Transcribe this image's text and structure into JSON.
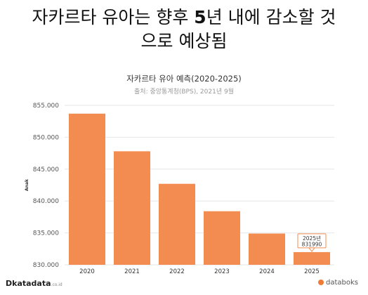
{
  "headline": {
    "line1_a": "자카르타 유아는 향후 ",
    "line1_num": "5",
    "line1_b": "년 내에 감소할 것",
    "line2": "으로 예상됨"
  },
  "chart_data": {
    "type": "bar",
    "title": "자카르타 유아 예측(2020-2025)",
    "source": "출처: 중앙통계청(BPS), 2021년 9월",
    "ylabel": "Anak",
    "xlabel": "",
    "categories": [
      "2020",
      "2021",
      "2022",
      "2023",
      "2024",
      "2025"
    ],
    "values": [
      853700,
      847800,
      842700,
      838400,
      834900,
      831990
    ],
    "ylim": [
      830000,
      855000
    ],
    "yticks": [
      830000,
      835000,
      840000,
      845000,
      850000,
      855000
    ],
    "ytick_labels": [
      "830.000",
      "835.000",
      "840.000",
      "845.000",
      "850.000",
      "855.000"
    ],
    "grid": true,
    "bar_color": "#f28c50",
    "annotation": {
      "category": "2025",
      "line1": "2025년",
      "line2": "831990"
    }
  },
  "footer": {
    "left_brand": "katadata",
    "left_sub": ".co.id",
    "right_brand": "databoks"
  }
}
